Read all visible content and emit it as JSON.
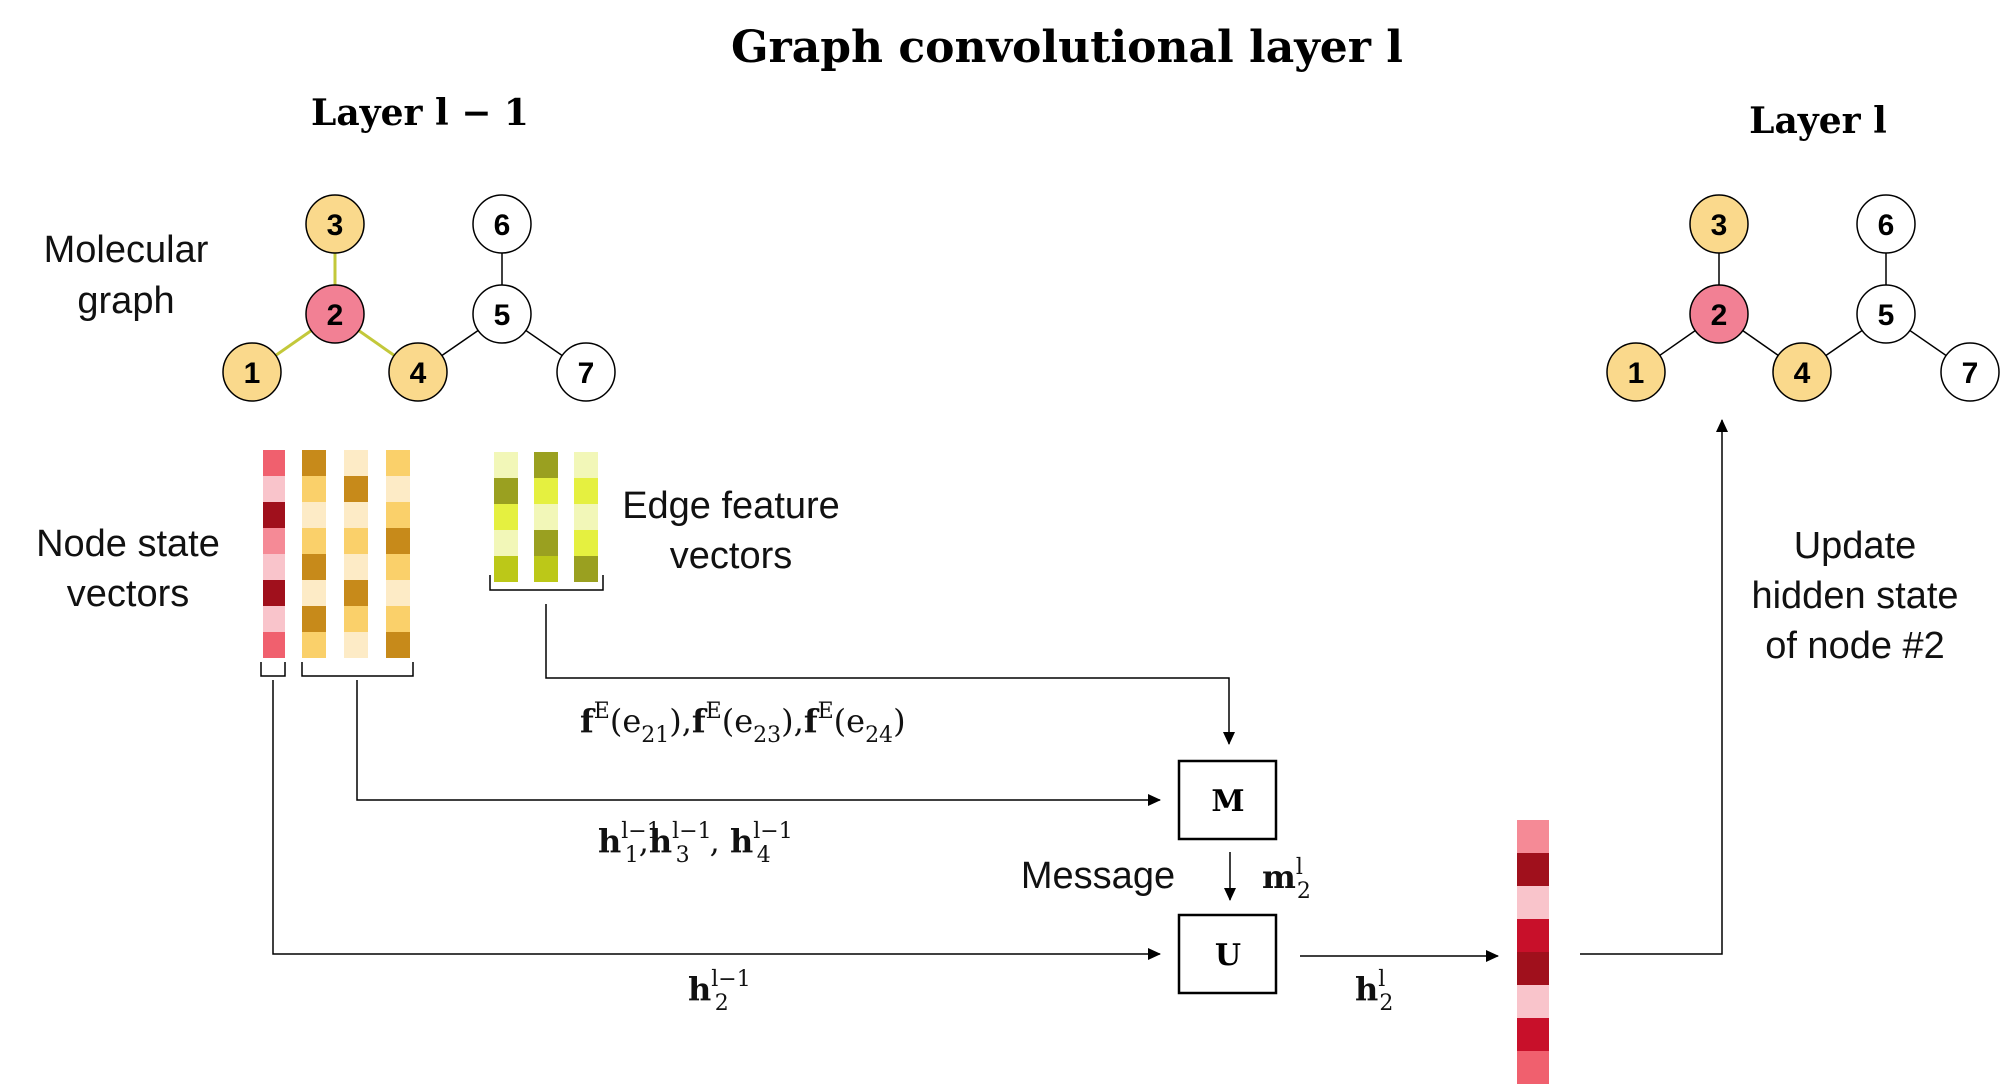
{
  "title": "Graph convolutional layer l",
  "layers": {
    "left_title": "Layer l − 1",
    "right_title": "Layer l"
  },
  "labels": {
    "molecular_graph": [
      "Molecular",
      "graph"
    ],
    "node_state_vectors": [
      "Node state",
      "vectors"
    ],
    "edge_feature_vectors": [
      "Edge feature",
      "vectors"
    ],
    "update_hidden_state": [
      "Update",
      "hidden state",
      "of node #2"
    ],
    "message": "Message"
  },
  "graph": {
    "nodes": [
      "1",
      "2",
      "3",
      "4",
      "5",
      "6",
      "7"
    ],
    "edges": [
      [
        "1",
        "2"
      ],
      [
        "2",
        "3"
      ],
      [
        "2",
        "4"
      ],
      [
        "4",
        "5"
      ],
      [
        "5",
        "6"
      ],
      [
        "5",
        "7"
      ]
    ],
    "node_colors": {
      "center": "#F28094",
      "neighbor": "#FAD98C",
      "other": "#FFFFFF"
    },
    "highlight_edge_color": "#C3C83A"
  },
  "vectors": {
    "node_state_center": [
      "#F0606E",
      "#F9C4CB",
      "#A0101C",
      "#F58A96",
      "#F9C4CB",
      "#A0101C",
      "#F9C4CB",
      "#F0606E"
    ],
    "node_state_neighbor_1": [
      "#C78A1A",
      "#FAD06A",
      "#FDEBC6",
      "#FAD06A",
      "#C78A1A",
      "#FDEBC6",
      "#C78A1A",
      "#FAD06A"
    ],
    "node_state_neighbor_3": [
      "#FDEBC6",
      "#C78A1A",
      "#FDEBC6",
      "#FAD06A",
      "#FDEBC6",
      "#C78A1A",
      "#FAD06A",
      "#FDEBC6"
    ],
    "node_state_neighbor_4": [
      "#FAD06A",
      "#FDEBC6",
      "#FAD06A",
      "#C78A1A",
      "#FAD06A",
      "#FDEBC6",
      "#FAD06A",
      "#C78A1A"
    ],
    "edge_e21": [
      "#F2F7B8",
      "#9AA020",
      "#E5F040",
      "#F2F7B8",
      "#BCC818"
    ],
    "edge_e23": [
      "#9AA020",
      "#E5F040",
      "#F2F7B8",
      "#9AA020",
      "#BCC818"
    ],
    "edge_e24": [
      "#F2F7B8",
      "#E5F040",
      "#F2F7B8",
      "#E5F040",
      "#9AA020"
    ],
    "output_state": [
      "#F58A96",
      "#A0101C",
      "#F9C4CB",
      "#C8102A",
      "#A0101C",
      "#F9C4CB",
      "#C8102A",
      "#F0606E"
    ]
  },
  "functions": {
    "message_box": "M",
    "update_box": "U"
  },
  "math": {
    "edge_inputs": "fE(e21), fE(e23), fE(e24)",
    "neighbor_states": "h1l−1, h3l−1, h4l−1",
    "message": "m2l",
    "self_state": "h2l−1",
    "output_state": "h2l"
  }
}
